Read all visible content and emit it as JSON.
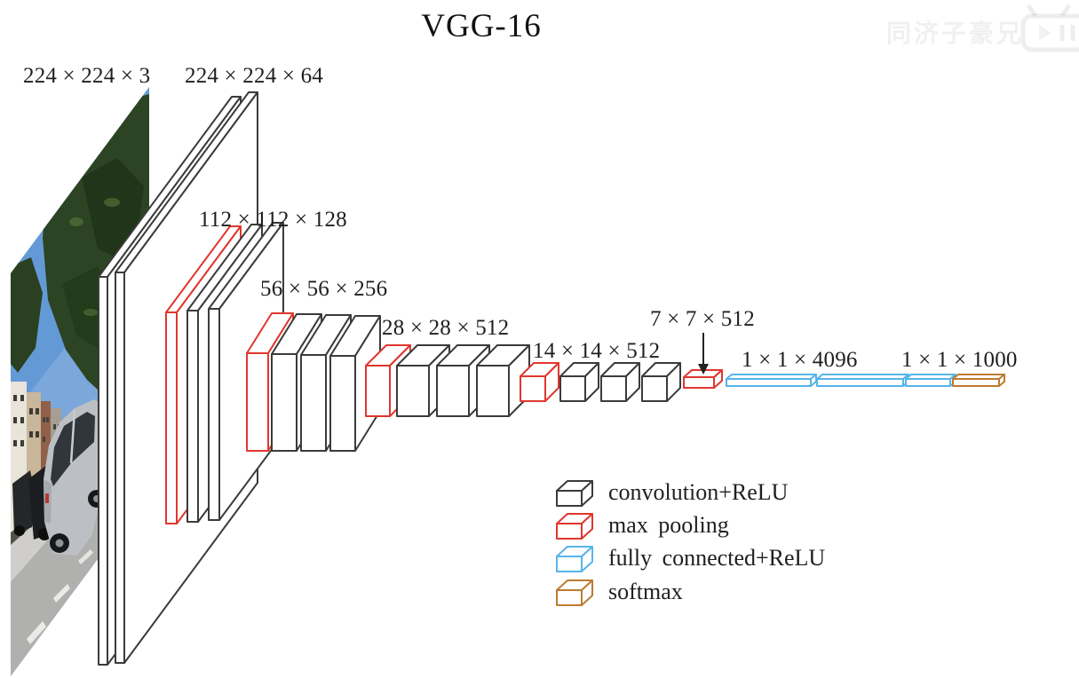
{
  "title": "VGG-16",
  "watermark": {
    "text": "同济子豪兄",
    "logo_label": "bili"
  },
  "input_image": {
    "alt": "street scene photo with silver car, trees and buildings"
  },
  "network": {
    "stages": [
      {
        "name": "input",
        "label": "224 × 224 × 3",
        "layers": [
          "input"
        ]
      },
      {
        "name": "conv1",
        "label": "224 × 224 × 64",
        "layers": [
          "conv",
          "conv"
        ]
      },
      {
        "name": "conv2",
        "label": "112 × 112 × 128",
        "layers": [
          "maxpool",
          "conv",
          "conv"
        ]
      },
      {
        "name": "conv3",
        "label": "56 × 56 × 256",
        "layers": [
          "maxpool",
          "conv",
          "conv",
          "conv"
        ]
      },
      {
        "name": "conv4",
        "label": "28 × 28 × 512",
        "layers": [
          "maxpool",
          "conv",
          "conv",
          "conv"
        ]
      },
      {
        "name": "conv5",
        "label": "14 × 14 × 512",
        "layers": [
          "maxpool",
          "conv",
          "conv",
          "conv"
        ]
      },
      {
        "name": "pool5",
        "label": "7 × 7 × 512",
        "layers": [
          "maxpool"
        ]
      },
      {
        "name": "fc",
        "label": "1 × 1 × 4096",
        "layers": [
          "fc",
          "fc"
        ]
      },
      {
        "name": "output",
        "label": "1 × 1 × 1000",
        "layers": [
          "fc",
          "softmax"
        ]
      }
    ]
  },
  "legend": {
    "items": [
      {
        "type": "conv",
        "label": "convolution+ReLU",
        "color": "#3b3b3b"
      },
      {
        "type": "maxpool",
        "label": "max pooling",
        "color": "#e0372e"
      },
      {
        "type": "fc",
        "label": "fully connected+ReLU",
        "color": "#56b4ea"
      },
      {
        "type": "softmax",
        "label": "softmax",
        "color": "#bd7b31"
      }
    ]
  },
  "colors": {
    "background": "#ffffff",
    "outline_conv": "#3b3b3b",
    "outline_maxpool": "#e0372e",
    "outline_fc": "#56b4ea",
    "outline_softmax": "#bd7b31",
    "text": "#1f1f1f"
  }
}
